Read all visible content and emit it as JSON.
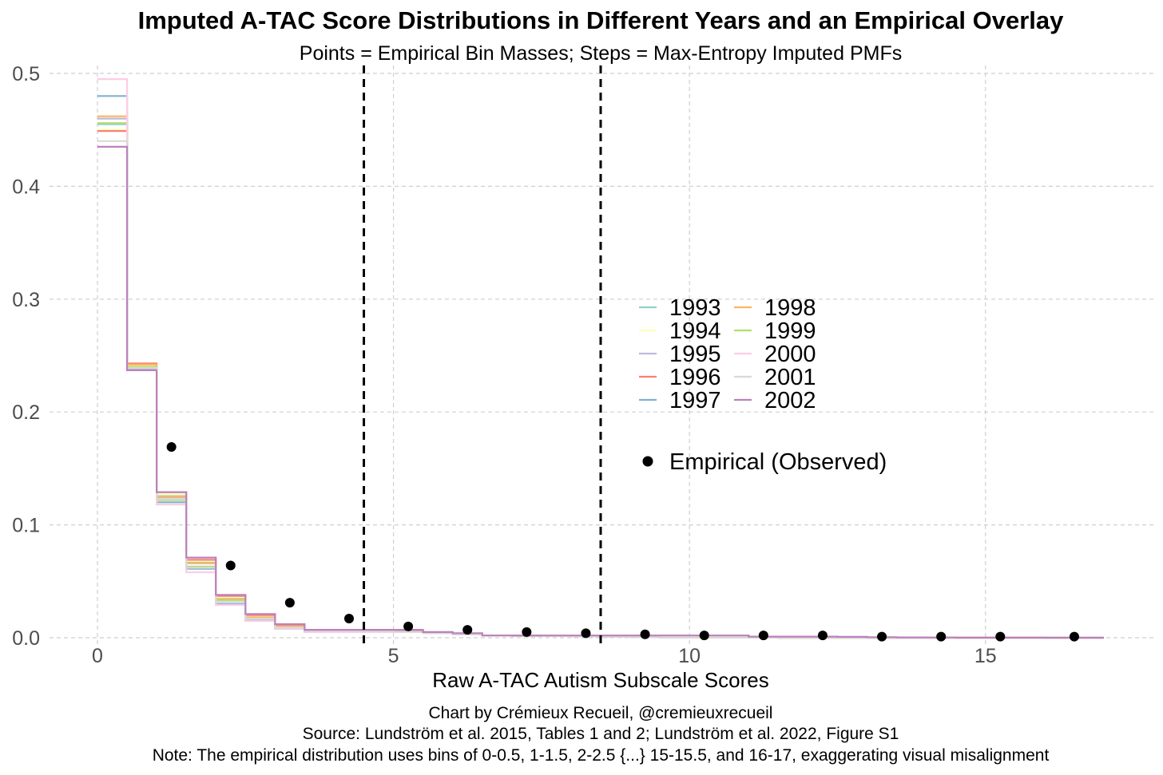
{
  "chart_data": {
    "type": "line",
    "title": "Imputed A-TAC Score Distributions in Different Years and an Empirical Overlay",
    "subtitle": "Points = Empirical Bin Masses; Steps = Max-Entropy Imputed PMFs",
    "xlabel": "Raw A-TAC Autism Subscale Scores",
    "ylabel": "",
    "xlim": [
      0,
      17
    ],
    "ylim": [
      0,
      0.5
    ],
    "x_ticks": [
      0,
      5,
      10,
      15
    ],
    "y_ticks": [
      0.0,
      0.1,
      0.2,
      0.3,
      0.4,
      0.5
    ],
    "x_tick_labels": [
      "0",
      "5",
      "10",
      "15"
    ],
    "y_tick_labels": [
      "0.0",
      "0.1",
      "0.2",
      "0.3",
      "0.4",
      "0.5"
    ],
    "grid": true,
    "legend_position": "center-right",
    "reference_lines": [
      4.5,
      8.5
    ],
    "series": [
      {
        "name": "1993",
        "color": "#8dd3c7",
        "values": [
          0.455,
          0.24,
          0.126,
          0.067,
          0.035,
          0.018,
          0.01,
          0.006,
          0.006,
          0.0055,
          0.005,
          0.004,
          0.003,
          0.002,
          0.0018,
          0.0015,
          0.0012,
          0.0008,
          0.0005,
          0.0003,
          0.0002,
          0.0001,
          5e-05,
          3e-05,
          2e-05,
          1e-05,
          1e-05,
          1e-05,
          1e-05,
          1e-05,
          1e-05,
          1e-05,
          1e-05,
          1e-05
        ]
      },
      {
        "name": "1994",
        "color": "#ffffb3",
        "values": [
          0.45,
          0.241,
          0.127,
          0.068,
          0.036,
          0.019,
          0.01,
          0.006,
          0.006,
          0.0055,
          0.005,
          0.004,
          0.003,
          0.002,
          0.0018,
          0.0015,
          0.0012,
          0.0008,
          0.0005,
          0.0003,
          0.0002,
          0.0001,
          5e-05,
          3e-05,
          2e-05,
          1e-05,
          1e-05,
          1e-05,
          1e-05,
          1e-05,
          1e-05,
          1e-05,
          1e-05,
          1e-05
        ]
      },
      {
        "name": "1995",
        "color": "#bebada",
        "values": [
          0.46,
          0.238,
          0.124,
          0.066,
          0.03,
          0.016,
          0.008,
          0.005,
          0.005,
          0.005,
          0.005,
          0.004,
          0.003,
          0.002,
          0.0018,
          0.0015,
          0.0012,
          0.0008,
          0.0005,
          0.0003,
          0.0002,
          0.0001,
          5e-05,
          3e-05,
          2e-05,
          1e-05,
          1e-05,
          1e-05,
          1e-05,
          1e-05,
          1e-05,
          1e-05,
          1e-05,
          1e-05
        ]
      },
      {
        "name": "1996",
        "color": "#fb8072",
        "values": [
          0.449,
          0.243,
          0.129,
          0.069,
          0.037,
          0.02,
          0.011,
          0.006,
          0.006,
          0.006,
          0.006,
          0.004,
          0.003,
          0.002,
          0.0018,
          0.0015,
          0.0012,
          0.0008,
          0.0005,
          0.0003,
          0.0002,
          0.0001,
          5e-05,
          3e-05,
          2e-05,
          1e-05,
          1e-05,
          1e-05,
          1e-05,
          1e-05,
          1e-05,
          1e-05,
          1e-05,
          1e-05
        ]
      },
      {
        "name": "1997",
        "color": "#80b1d3",
        "values": [
          0.48,
          0.238,
          0.12,
          0.061,
          0.03,
          0.015,
          0.008,
          0.005,
          0.005,
          0.005,
          0.005,
          0.004,
          0.003,
          0.002,
          0.0018,
          0.0015,
          0.0012,
          0.0008,
          0.0005,
          0.0003,
          0.0002,
          0.0001,
          5e-05,
          3e-05,
          2e-05,
          1e-05,
          1e-05,
          1e-05,
          1e-05,
          1e-05,
          1e-05,
          1e-05,
          1e-05,
          1e-05
        ]
      },
      {
        "name": "1998",
        "color": "#fdb462",
        "values": [
          0.462,
          0.242,
          0.125,
          0.066,
          0.034,
          0.018,
          0.01,
          0.006,
          0.006,
          0.0055,
          0.005,
          0.004,
          0.003,
          0.002,
          0.0018,
          0.0015,
          0.0012,
          0.0008,
          0.0005,
          0.0003,
          0.0002,
          0.0001,
          5e-05,
          3e-05,
          2e-05,
          1e-05,
          1e-05,
          1e-05,
          1e-05,
          1e-05,
          1e-05,
          1e-05,
          1e-05,
          1e-05
        ]
      },
      {
        "name": "1999",
        "color": "#b3de69",
        "values": [
          0.456,
          0.24,
          0.122,
          0.063,
          0.033,
          0.017,
          0.009,
          0.006,
          0.006,
          0.0055,
          0.005,
          0.004,
          0.003,
          0.002,
          0.0018,
          0.0015,
          0.0012,
          0.0008,
          0.0005,
          0.0003,
          0.0002,
          0.0001,
          5e-05,
          3e-05,
          2e-05,
          1e-05,
          1e-05,
          1e-05,
          1e-05,
          1e-05,
          1e-05,
          1e-05,
          1e-05,
          1e-05
        ]
      },
      {
        "name": "2000",
        "color": "#fccde5",
        "values": [
          0.495,
          0.237,
          0.118,
          0.058,
          0.029,
          0.015,
          0.008,
          0.005,
          0.005,
          0.005,
          0.005,
          0.004,
          0.003,
          0.002,
          0.0018,
          0.0015,
          0.0012,
          0.0008,
          0.0005,
          0.0003,
          0.0002,
          0.0001,
          5e-05,
          3e-05,
          2e-05,
          1e-05,
          1e-05,
          1e-05,
          1e-05,
          1e-05,
          1e-05,
          1e-05,
          1e-05,
          1e-05
        ]
      },
      {
        "name": "2001",
        "color": "#d9d9d9",
        "values": [
          0.44,
          0.239,
          0.123,
          0.062,
          0.032,
          0.017,
          0.009,
          0.006,
          0.006,
          0.0055,
          0.005,
          0.004,
          0.003,
          0.002,
          0.0018,
          0.0015,
          0.0012,
          0.0008,
          0.0005,
          0.0003,
          0.0002,
          0.0001,
          5e-05,
          3e-05,
          2e-05,
          1e-05,
          1e-05,
          1e-05,
          1e-05,
          1e-05,
          1e-05,
          1e-05,
          1e-05,
          1e-05
        ]
      },
      {
        "name": "2002",
        "color": "#bc80bd",
        "values": [
          0.435,
          0.237,
          0.129,
          0.071,
          0.038,
          0.021,
          0.012,
          0.007,
          0.007,
          0.007,
          0.007,
          0.005,
          0.004,
          0.002,
          0.002,
          0.002,
          0.002,
          0.002,
          0.002,
          0.002,
          0.002,
          0.002,
          0.001,
          0.001,
          0.001,
          0.0008,
          0.0005,
          0.0003,
          0.0002,
          0.0001,
          0.0001,
          5e-05,
          2e-05,
          1e-05
        ]
      }
    ],
    "step_width": 0.5,
    "empirical": {
      "name": "Empirical (Observed)",
      "color": "#000000",
      "x": [
        1.25,
        2.25,
        3.25,
        4.25,
        5.25,
        6.25,
        7.25,
        8.25,
        9.25,
        10.25,
        11.25,
        12.25,
        13.25,
        14.25,
        15.25,
        16.5
      ],
      "y": [
        0.169,
        0.064,
        0.031,
        0.017,
        0.01,
        0.007,
        0.005,
        0.004,
        0.003,
        0.002,
        0.002,
        0.002,
        0.001,
        0.001,
        0.001,
        0.001
      ]
    },
    "legend_columns": [
      [
        "1993",
        "1994",
        "1995",
        "1996",
        "1997"
      ],
      [
        "1998",
        "1999",
        "2000",
        "2001",
        "2002"
      ]
    ],
    "caption": [
      "Chart by Crémieux Recueil, @cremieuxrecueil",
      "Source: Lundström et al. 2015, Tables 1 and 2; Lundström et al. 2022, Figure S1",
      "Note: The empirical distribution uses bins of 0-0.5, 1-1.5, 2-2.5 {...} 15-15.5, and 16-17, exaggerating visual misalignment"
    ]
  }
}
